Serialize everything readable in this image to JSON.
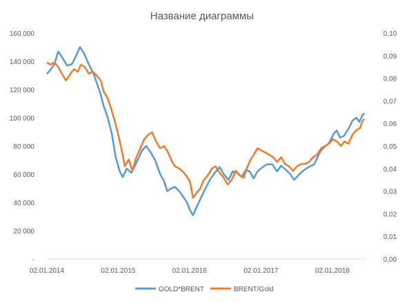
{
  "chart_data": {
    "type": "line",
    "title": "Название диаграммы",
    "x_ticks": [
      "02.01.2014",
      "02.01.2015",
      "02.01.2016",
      "02.01.2017",
      "02.01.2018"
    ],
    "y_left": {
      "ylim": [
        0,
        160000
      ],
      "ticks": [
        "-",
        "20 000",
        "40 000",
        "60 000",
        "80 000",
        "100 000",
        "120 000",
        "140 000",
        "160 000"
      ]
    },
    "y_right": {
      "ylim": [
        0,
        0.1
      ],
      "ticks": [
        "0,00",
        "0,01",
        "0,02",
        "0,03",
        "0,04",
        "0,05",
        "0,06",
        "0,07",
        "0,08",
        "0,09",
        "0,10"
      ]
    },
    "grid": false,
    "legend_position": "bottom",
    "series": [
      {
        "name": "GOLD*BRENT",
        "axis": "left",
        "color": "#5B9BD5",
        "points": [
          [
            "2014-01-02",
            131000
          ],
          [
            "2014-01-20",
            134000
          ],
          [
            "2014-02-10",
            138000
          ],
          [
            "2014-03-01",
            147000
          ],
          [
            "2014-03-20",
            143000
          ],
          [
            "2014-04-15",
            137000
          ],
          [
            "2014-05-10",
            138000
          ],
          [
            "2014-06-01",
            144000
          ],
          [
            "2014-06-20",
            150000
          ],
          [
            "2014-07-10",
            146000
          ],
          [
            "2014-08-01",
            139000
          ],
          [
            "2014-09-01",
            130000
          ],
          [
            "2014-10-01",
            118000
          ],
          [
            "2014-10-20",
            108000
          ],
          [
            "2014-11-10",
            100000
          ],
          [
            "2014-12-01",
            88000
          ],
          [
            "2014-12-20",
            72000
          ],
          [
            "2015-01-10",
            62000
          ],
          [
            "2015-01-25",
            58000
          ],
          [
            "2015-02-15",
            64000
          ],
          [
            "2015-03-10",
            61000
          ],
          [
            "2015-04-05",
            68000
          ],
          [
            "2015-05-05",
            77000
          ],
          [
            "2015-05-25",
            80000
          ],
          [
            "2015-06-15",
            76000
          ],
          [
            "2015-07-10",
            70000
          ],
          [
            "2015-08-05",
            60000
          ],
          [
            "2015-08-25",
            55000
          ],
          [
            "2015-09-10",
            48000
          ],
          [
            "2015-10-01",
            50000
          ],
          [
            "2015-10-20",
            51000
          ],
          [
            "2015-11-10",
            48000
          ],
          [
            "2015-12-01",
            44000
          ],
          [
            "2015-12-20",
            40000
          ],
          [
            "2016-01-10",
            33000
          ],
          [
            "2016-01-20",
            31000
          ],
          [
            "2016-02-05",
            36000
          ],
          [
            "2016-02-25",
            42000
          ],
          [
            "2016-03-20",
            49000
          ],
          [
            "2016-04-15",
            56000
          ],
          [
            "2016-05-10",
            61000
          ],
          [
            "2016-06-05",
            65000
          ],
          [
            "2016-06-25",
            60000
          ],
          [
            "2016-07-20",
            56000
          ],
          [
            "2016-08-10",
            62000
          ],
          [
            "2016-09-01",
            61000
          ],
          [
            "2016-09-25",
            58000
          ],
          [
            "2016-10-15",
            63000
          ],
          [
            "2016-11-05",
            62000
          ],
          [
            "2016-11-25",
            57000
          ],
          [
            "2016-12-15",
            62000
          ],
          [
            "2017-01-10",
            65000
          ],
          [
            "2017-02-01",
            67000
          ],
          [
            "2017-03-01",
            67000
          ],
          [
            "2017-03-25",
            62000
          ],
          [
            "2017-04-15",
            66000
          ],
          [
            "2017-05-10",
            63000
          ],
          [
            "2017-06-01",
            60000
          ],
          [
            "2017-06-20",
            56000
          ],
          [
            "2017-07-10",
            59000
          ],
          [
            "2017-08-01",
            62000
          ],
          [
            "2017-09-01",
            65000
          ],
          [
            "2017-10-01",
            67000
          ],
          [
            "2017-11-01",
            76000
          ],
          [
            "2017-11-20",
            79000
          ],
          [
            "2017-12-15",
            82000
          ],
          [
            "2018-01-10",
            89000
          ],
          [
            "2018-01-25",
            91000
          ],
          [
            "2018-02-10",
            86000
          ],
          [
            "2018-03-01",
            87000
          ],
          [
            "2018-03-25",
            92000
          ],
          [
            "2018-04-15",
            98000
          ],
          [
            "2018-05-05",
            100000
          ],
          [
            "2018-05-20",
            97000
          ],
          [
            "2018-06-05",
            102000
          ],
          [
            "2018-06-15",
            103000
          ]
        ]
      },
      {
        "name": "BRENT/Gold",
        "axis": "right",
        "color": "#ED7D31",
        "points": [
          [
            "2014-01-02",
            0.087
          ],
          [
            "2014-01-20",
            0.086
          ],
          [
            "2014-02-10",
            0.087
          ],
          [
            "2014-03-01",
            0.085
          ],
          [
            "2014-03-20",
            0.082
          ],
          [
            "2014-04-10",
            0.079
          ],
          [
            "2014-04-25",
            0.081
          ],
          [
            "2014-05-20",
            0.084
          ],
          [
            "2014-06-10",
            0.083
          ],
          [
            "2014-06-25",
            0.086
          ],
          [
            "2014-07-15",
            0.085
          ],
          [
            "2014-08-05",
            0.082
          ],
          [
            "2014-08-25",
            0.083
          ],
          [
            "2014-09-15",
            0.081
          ],
          [
            "2014-10-05",
            0.079
          ],
          [
            "2014-10-20",
            0.074
          ],
          [
            "2014-11-10",
            0.071
          ],
          [
            "2014-11-25",
            0.067
          ],
          [
            "2014-12-15",
            0.061
          ],
          [
            "2015-01-05",
            0.054
          ],
          [
            "2015-01-20",
            0.048
          ],
          [
            "2015-02-05",
            0.041
          ],
          [
            "2015-02-25",
            0.044
          ],
          [
            "2015-03-15",
            0.039
          ],
          [
            "2015-04-05",
            0.045
          ],
          [
            "2015-04-25",
            0.049
          ],
          [
            "2015-05-15",
            0.053
          ],
          [
            "2015-06-05",
            0.055
          ],
          [
            "2015-06-25",
            0.056
          ],
          [
            "2015-07-15",
            0.052
          ],
          [
            "2015-08-05",
            0.049
          ],
          [
            "2015-08-25",
            0.05
          ],
          [
            "2015-09-15",
            0.047
          ],
          [
            "2015-10-05",
            0.043
          ],
          [
            "2015-10-20",
            0.041
          ],
          [
            "2015-11-10",
            0.04
          ],
          [
            "2015-11-25",
            0.039
          ],
          [
            "2015-12-15",
            0.037
          ],
          [
            "2016-01-05",
            0.034
          ],
          [
            "2016-01-20",
            0.027
          ],
          [
            "2016-02-05",
            0.029
          ],
          [
            "2016-02-25",
            0.031
          ],
          [
            "2016-03-15",
            0.035
          ],
          [
            "2016-04-05",
            0.037
          ],
          [
            "2016-04-25",
            0.04
          ],
          [
            "2016-05-15",
            0.041
          ],
          [
            "2016-06-05",
            0.038
          ],
          [
            "2016-06-25",
            0.036
          ],
          [
            "2016-07-15",
            0.033
          ],
          [
            "2016-08-05",
            0.035
          ],
          [
            "2016-08-25",
            0.039
          ],
          [
            "2016-09-15",
            0.037
          ],
          [
            "2016-10-05",
            0.036
          ],
          [
            "2016-10-25",
            0.041
          ],
          [
            "2016-11-10",
            0.044
          ],
          [
            "2016-11-25",
            0.046
          ],
          [
            "2016-12-15",
            0.049
          ],
          [
            "2017-01-05",
            0.048
          ],
          [
            "2017-01-25",
            0.047
          ],
          [
            "2017-02-15",
            0.046
          ],
          [
            "2017-03-05",
            0.045
          ],
          [
            "2017-03-25",
            0.043
          ],
          [
            "2017-04-15",
            0.045
          ],
          [
            "2017-05-05",
            0.042
          ],
          [
            "2017-05-25",
            0.041
          ],
          [
            "2017-06-15",
            0.039
          ],
          [
            "2017-07-05",
            0.041
          ],
          [
            "2017-07-25",
            0.042
          ],
          [
            "2017-08-15",
            0.042
          ],
          [
            "2017-09-05",
            0.043
          ],
          [
            "2017-09-25",
            0.045
          ],
          [
            "2017-10-15",
            0.046
          ],
          [
            "2017-11-05",
            0.049
          ],
          [
            "2017-11-25",
            0.05
          ],
          [
            "2017-12-15",
            0.051
          ],
          [
            "2018-01-05",
            0.053
          ],
          [
            "2018-01-25",
            0.052
          ],
          [
            "2018-02-15",
            0.05
          ],
          [
            "2018-03-05",
            0.052
          ],
          [
            "2018-03-25",
            0.051
          ],
          [
            "2018-04-15",
            0.055
          ],
          [
            "2018-05-05",
            0.057
          ],
          [
            "2018-05-25",
            0.058
          ],
          [
            "2018-06-05",
            0.061
          ],
          [
            "2018-06-15",
            0.062
          ]
        ]
      }
    ]
  }
}
